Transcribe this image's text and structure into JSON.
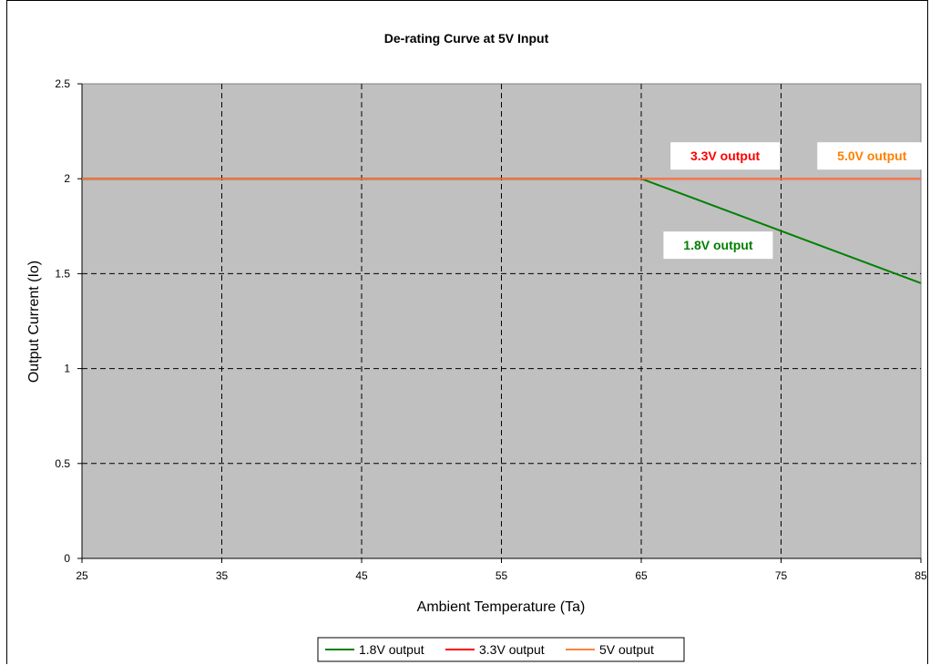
{
  "chart_data": {
    "type": "line",
    "title": "De-rating Curve at 5V Input",
    "xlabel": "Ambient Temperature (Ta)",
    "ylabel": "Output Current (Io)",
    "xlim": [
      25,
      85
    ],
    "ylim": [
      0,
      2.5
    ],
    "x_ticks": [
      "25",
      "35",
      "45",
      "55",
      "65",
      "75",
      "85"
    ],
    "y_ticks": [
      "0",
      "0.5",
      "1",
      "1.5",
      "2",
      "2.5"
    ],
    "grid": true,
    "legend_position": "bottom",
    "plot_background": "#c0c0c0",
    "series": [
      {
        "name": "1.8V output",
        "color": "#008000",
        "x": [
          25,
          65,
          85
        ],
        "y": [
          2,
          2,
          1.45
        ]
      },
      {
        "name": "3.3V output",
        "color": "#ff0000",
        "x": [
          25,
          85
        ],
        "y": [
          2,
          2
        ]
      },
      {
        "name": "5V output",
        "color": "#ff8040",
        "x": [
          25,
          85
        ],
        "y": [
          2,
          2
        ]
      }
    ],
    "annotations": [
      {
        "text": "3.3V output",
        "color": "#ff0000",
        "x": 71,
        "y": 2.12
      },
      {
        "text": "5.0V output",
        "color": "#ff8000",
        "x": 81.5,
        "y": 2.12
      },
      {
        "text": "1.8V output",
        "color": "#008000",
        "x": 70.5,
        "y": 1.65
      }
    ]
  }
}
